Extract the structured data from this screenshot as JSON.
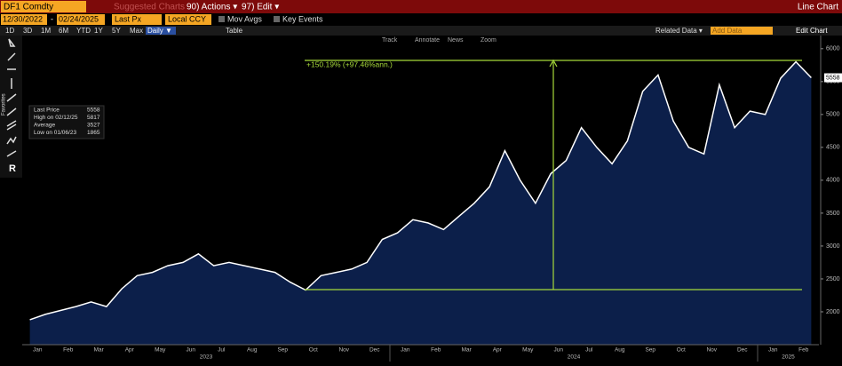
{
  "toolbar": {
    "ticker": "DF1 Comdty",
    "suggested": "Suggested Charts",
    "actions": "90) Actions ▾",
    "edit": "97) Edit ▾",
    "chart_type": "Line Chart"
  },
  "controls": {
    "start": "12/30/2022",
    "dash": "-",
    "end": "02/24/2025",
    "field": "Last Px",
    "currency": "Local CCY",
    "mov_avgs": "Mov Avgs",
    "key_events": "Key Events",
    "periods": [
      "1D",
      "3D",
      "1M",
      "6M",
      "YTD",
      "1Y",
      "5Y",
      "Max"
    ],
    "frequency": "Daily ▼",
    "table": "Table",
    "related": "Related Data ▾",
    "add_data": "Add Data",
    "edit_chart": "Edit Chart"
  },
  "chart_tools": [
    "Track",
    "Annotate",
    "News",
    "Zoom"
  ],
  "favorites": "Favorites",
  "legend": [
    {
      "label": "Last Price",
      "value": 5558
    },
    {
      "label": "High on 02/12/25",
      "value": 5817
    },
    {
      "label": "Average",
      "value": 3527
    },
    {
      "label": "Low on 01/06/23",
      "value": 1865
    }
  ],
  "annotation": "+150.19% (+97.46%ann.)",
  "chart_data": {
    "type": "line",
    "x_labels": [
      "Jan",
      "Feb",
      "Mar",
      "Apr",
      "May",
      "Jun",
      "Jul",
      "Aug",
      "Sep",
      "Oct",
      "Nov",
      "Dec",
      "Jan",
      "Feb",
      "Mar",
      "Apr",
      "May",
      "Jun",
      "Jul",
      "Aug",
      "Sep",
      "Oct",
      "Nov",
      "Dec",
      "Jan",
      "Feb"
    ],
    "years": [
      "2023",
      "2024",
      "2025"
    ],
    "series": [
      {
        "name": "Last Price",
        "color": "#ffffff",
        "values": [
          1880,
          1960,
          2020,
          2080,
          2150,
          2080,
          2350,
          2550,
          2600,
          2700,
          2750,
          2880,
          2700,
          2750,
          2700,
          2650,
          2600,
          2450,
          2330,
          2550,
          2600,
          2650,
          2750,
          3100,
          3200,
          3400,
          3350,
          3250,
          3450,
          3650,
          3900,
          4450,
          4000,
          3650,
          4100,
          4300,
          4800,
          4500,
          4250,
          4600,
          5350,
          5600,
          4900,
          4500,
          4400,
          5450,
          4800,
          5050,
          5000,
          5550,
          5800,
          5558
        ]
      }
    ],
    "ylim": [
      1500,
      6200
    ],
    "yticks": [
      2000,
      2500,
      3000,
      3500,
      4000,
      4500,
      5000,
      5500,
      6000
    ],
    "grid": false
  }
}
